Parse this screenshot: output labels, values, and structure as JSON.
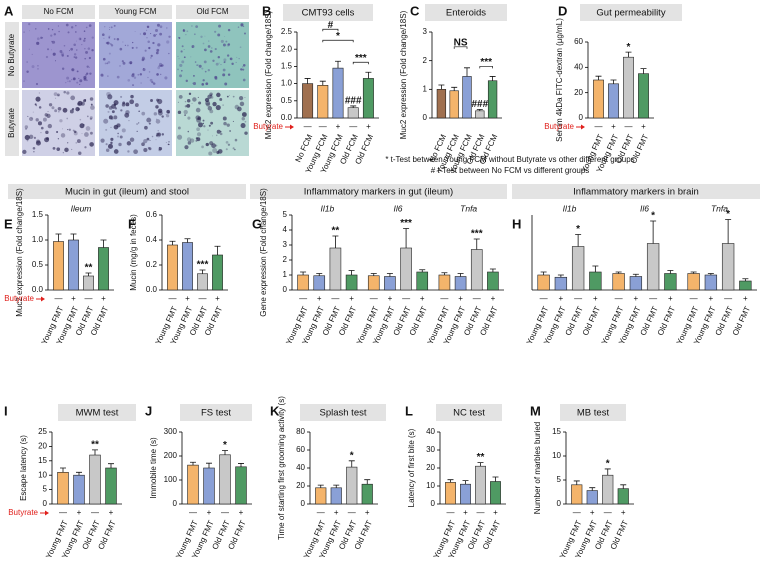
{
  "image_panel": {
    "letter": "A",
    "columns": [
      "No FCM",
      "Young FCM",
      "Old FCM"
    ],
    "rows": [
      "No Butyrate",
      "Butyrate"
    ]
  },
  "notes": [
    "* t-Test between Young FCM without Butyrate vs other different groups",
    "# t-Test between No FCM vs different groups"
  ],
  "chart_data": [
    {
      "type": "bar",
      "panel": "B",
      "title": "CMT93 cells",
      "ylabel": "Muc2 expression (Fold change/18S)",
      "ylim": [
        0,
        2.5
      ],
      "yticks": [
        {
          "value": 0,
          "label": "0.0"
        },
        0.5,
        {
          "value": 1,
          "label": "1.0"
        },
        1.5,
        {
          "value": 2,
          "label": "2.0"
        },
        2.5
      ],
      "categories": [
        "No FCM",
        "Young FCM",
        "Young FCM",
        "Old FCM",
        "Old FCM"
      ],
      "colors": [
        "#a0704f",
        "#f4b46b",
        "#8aa0d6",
        "#c8c8c8",
        "#4f9a63"
      ],
      "treatment_label": "Butyrate",
      "signs": [
        "—",
        "—",
        "+",
        "—",
        "+"
      ],
      "groups": [
        {
          "values": [
            1.0,
            0.95,
            1.45,
            0.3,
            1.15
          ],
          "errors": [
            0.15,
            0.12,
            0.2,
            0.05,
            0.18
          ],
          "annotations": [
            {
              "index": 3,
              "text": "###"
            }
          ],
          "brackets": [
            {
              "from": 3,
              "to": 4,
              "text": "***"
            },
            {
              "from": 1,
              "to": 3,
              "text": "*"
            },
            {
              "from": 1,
              "to": 2,
              "text": "#"
            }
          ]
        }
      ]
    },
    {
      "type": "bar",
      "panel": "C",
      "title": "Enteroids",
      "ylabel": "Muc2 expression (Fold change/18S)",
      "ylim": [
        0,
        3
      ],
      "yticks": [
        0,
        1,
        2,
        3
      ],
      "categories": [
        "No FCM",
        "Young FCM",
        "Young FCM",
        "Old FCM",
        "Old FCM"
      ],
      "colors": [
        "#a0704f",
        "#f4b46b",
        "#8aa0d6",
        "#c8c8c8",
        "#4f9a63"
      ],
      "groups": [
        {
          "values": [
            1.0,
            0.95,
            1.45,
            0.25,
            1.3
          ],
          "errors": [
            0.15,
            0.12,
            0.3,
            0.05,
            0.15
          ],
          "annotations": [
            {
              "index": 3,
              "text": "###"
            }
          ],
          "brackets": [
            {
              "from": 3,
              "to": 4,
              "text": "***"
            },
            {
              "from": 1,
              "to": 2,
              "text": "NS"
            }
          ]
        }
      ]
    },
    {
      "type": "bar",
      "panel": "D",
      "title": "Gut permeability",
      "ylabel": "Serum 4kDa FITC-dextran (µg/mL)",
      "ylim": [
        0,
        60
      ],
      "yticks": [
        0,
        20,
        40,
        60
      ],
      "categories": [
        "Young FMT",
        "Young FMT",
        "Old FMT",
        "Old FMT"
      ],
      "colors": [
        "#f4b46b",
        "#8aa0d6",
        "#c8c8c8",
        "#4f9a63"
      ],
      "treatment_label": "Butyrate",
      "signs": [
        "—",
        "+",
        "—",
        "+"
      ],
      "groups": [
        {
          "values": [
            30,
            27,
            48,
            35
          ],
          "errors": [
            3,
            3,
            4,
            4
          ],
          "annotations": [
            {
              "index": 2,
              "text": "*"
            }
          ]
        }
      ]
    },
    {
      "type": "bar",
      "panel": "E",
      "title": "Mucin in gut (ileum) and stool",
      "ylabel": "Muc2 expression (Fold change/18S)",
      "ylim": [
        0,
        1.5
      ],
      "yticks": [
        {
          "value": 0,
          "label": "0.0"
        },
        0.5,
        {
          "value": 1,
          "label": "1.0"
        },
        1.5
      ],
      "categories": [
        "Young FMT",
        "Young FMT",
        "Old FMT",
        "Old FMT"
      ],
      "colors": [
        "#f4b46b",
        "#8aa0d6",
        "#c8c8c8",
        "#4f9a63"
      ],
      "treatment_label": "Butyrate",
      "signs": [
        "—",
        "+",
        "—",
        "+"
      ],
      "groups": [
        {
          "name": "Ileum",
          "values": [
            0.97,
            1.0,
            0.28,
            0.85
          ],
          "errors": [
            0.15,
            0.12,
            0.06,
            0.15
          ],
          "annotations": [
            {
              "index": 2,
              "text": "**"
            }
          ]
        }
      ]
    },
    {
      "type": "bar",
      "panel": "F",
      "ylabel": "Mucin (mg/g in feces)",
      "ylim": [
        0,
        0.6
      ],
      "yticks": [
        {
          "value": 0,
          "label": "0.0"
        },
        0.2,
        0.4,
        0.6
      ],
      "categories": [
        "Young FMT",
        "Young FMT",
        "Old FMT",
        "Old FMT"
      ],
      "colors": [
        "#f4b46b",
        "#8aa0d6",
        "#c8c8c8",
        "#4f9a63"
      ],
      "signs": [
        "—",
        "+",
        "—",
        "+"
      ],
      "groups": [
        {
          "values": [
            0.36,
            0.38,
            0.13,
            0.28
          ],
          "errors": [
            0.03,
            0.03,
            0.03,
            0.07
          ],
          "annotations": [
            {
              "index": 2,
              "text": "***"
            }
          ]
        }
      ]
    },
    {
      "type": "bar",
      "panel": "G",
      "title": "Inflammatory markers in gut (ileum)",
      "ylabel": "Gene expression (Fold change/18S)",
      "ylim": [
        0,
        5
      ],
      "yticks": [
        0,
        1,
        2,
        3,
        4,
        5
      ],
      "categories": [
        "Young FMT",
        "Young FMT",
        "Old FMT",
        "Old FMT"
      ],
      "colors": [
        "#f4b46b",
        "#8aa0d6",
        "#c8c8c8",
        "#4f9a63"
      ],
      "signs": [
        "—",
        "+",
        "—",
        "+"
      ],
      "groups": [
        {
          "name": "Il1b",
          "values": [
            1.0,
            0.95,
            2.8,
            1.0
          ],
          "errors": [
            0.2,
            0.15,
            0.8,
            0.3
          ],
          "annotations": [
            {
              "index": 2,
              "text": "**"
            }
          ]
        },
        {
          "name": "Il6",
          "values": [
            0.95,
            0.9,
            2.8,
            1.2
          ],
          "errors": [
            0.15,
            0.2,
            1.3,
            0.15
          ],
          "annotations": [
            {
              "index": 2,
              "text": "***"
            }
          ]
        },
        {
          "name": "Tnfa",
          "values": [
            1.0,
            0.9,
            2.7,
            1.2
          ],
          "errors": [
            0.15,
            0.2,
            0.7,
            0.2
          ],
          "annotations": [
            {
              "index": 2,
              "text": "***"
            }
          ]
        }
      ]
    },
    {
      "type": "bar",
      "panel": "H",
      "title": "Inflammatory markers in brain",
      "ylim": [
        0,
        5
      ],
      "categories": [
        "Young FMT",
        "Young FMT",
        "Old FMT",
        "Old FMT"
      ],
      "colors": [
        "#f4b46b",
        "#8aa0d6",
        "#c8c8c8",
        "#4f9a63"
      ],
      "signs": [
        "—",
        "+",
        "—",
        "+"
      ],
      "groups": [
        {
          "name": "Il1b",
          "values": [
            1.0,
            0.85,
            2.9,
            1.2
          ],
          "errors": [
            0.2,
            0.15,
            0.8,
            0.4
          ],
          "annotations": [
            {
              "index": 2,
              "text": "*"
            }
          ]
        },
        {
          "name": "Il6",
          "values": [
            1.1,
            0.9,
            3.1,
            1.1
          ],
          "errors": [
            0.1,
            0.15,
            1.5,
            0.2
          ],
          "annotations": [
            {
              "index": 2,
              "text": "*"
            }
          ]
        },
        {
          "name": "Tnfa",
          "values": [
            1.1,
            1.0,
            3.1,
            0.6
          ],
          "errors": [
            0.1,
            0.1,
            1.6,
            0.15
          ],
          "annotations": [
            {
              "index": 2,
              "text": "*"
            }
          ]
        }
      ]
    },
    {
      "type": "bar",
      "panel": "I",
      "title": "MWM test",
      "ylabel": "Escape latency (s)",
      "ylim": [
        0,
        25
      ],
      "yticks": [
        0,
        5,
        10,
        15,
        20,
        25
      ],
      "categories": [
        "Young FMT",
        "Young FMT",
        "Old FMT",
        "Old FMT"
      ],
      "colors": [
        "#f4b46b",
        "#8aa0d6",
        "#c8c8c8",
        "#4f9a63"
      ],
      "treatment_label": "Butyrate",
      "signs": [
        "—",
        "+",
        "—",
        "+"
      ],
      "groups": [
        {
          "values": [
            11,
            10,
            17,
            12.5
          ],
          "errors": [
            1.5,
            1,
            1.8,
            1.5
          ],
          "annotations": [
            {
              "index": 2,
              "text": "**"
            }
          ]
        }
      ]
    },
    {
      "type": "bar",
      "panel": "J",
      "title": "FS test",
      "ylabel": "Immobile time (s)",
      "ylim": [
        0,
        300
      ],
      "yticks": [
        0,
        100,
        200,
        300
      ],
      "categories": [
        "Young FMT",
        "Young FMT",
        "Old FMT",
        "Old FMT"
      ],
      "colors": [
        "#f4b46b",
        "#8aa0d6",
        "#c8c8c8",
        "#4f9a63"
      ],
      "signs": [
        "—",
        "+",
        "—",
        "+"
      ],
      "groups": [
        {
          "values": [
            162,
            150,
            205,
            155
          ],
          "errors": [
            12,
            20,
            18,
            14
          ],
          "annotations": [
            {
              "index": 2,
              "text": "*"
            }
          ]
        }
      ]
    },
    {
      "type": "bar",
      "panel": "K",
      "title": "Splash test",
      "ylabel": "Time of starting first grooming activity (s)",
      "ylim": [
        0,
        80
      ],
      "yticks": [
        0,
        20,
        40,
        60,
        80
      ],
      "categories": [
        "Young FMT",
        "Young FMT",
        "Old FMT",
        "Old FMT"
      ],
      "colors": [
        "#f4b46b",
        "#8aa0d6",
        "#c8c8c8",
        "#4f9a63"
      ],
      "signs": [
        "—",
        "+",
        "—",
        "+"
      ],
      "groups": [
        {
          "values": [
            18,
            18,
            41,
            22
          ],
          "errors": [
            3,
            3,
            7,
            5
          ],
          "annotations": [
            {
              "index": 2,
              "text": "*"
            }
          ]
        }
      ]
    },
    {
      "type": "bar",
      "panel": "L",
      "title": "NC test",
      "ylabel": "Latency of first bite (s)",
      "ylim": [
        0,
        40
      ],
      "yticks": [
        0,
        10,
        20,
        30,
        40
      ],
      "categories": [
        "Young FMT",
        "Young FMT",
        "Old FMT",
        "Old FMT"
      ],
      "colors": [
        "#f4b46b",
        "#8aa0d6",
        "#c8c8c8",
        "#4f9a63"
      ],
      "signs": [
        "—",
        "+",
        "—",
        "+"
      ],
      "groups": [
        {
          "values": [
            12,
            11,
            21,
            12.5
          ],
          "errors": [
            1.5,
            2,
            2,
            2.5
          ],
          "annotations": [
            {
              "index": 2,
              "text": "**"
            }
          ]
        }
      ]
    },
    {
      "type": "bar",
      "panel": "M",
      "title": "MB test",
      "ylabel": "Number of marbles buried",
      "ylim": [
        0,
        15
      ],
      "yticks": [
        0,
        5,
        10,
        15
      ],
      "categories": [
        "Young FMT",
        "Young FMT",
        "Old FMT",
        "Old FMT"
      ],
      "colors": [
        "#f4b46b",
        "#8aa0d6",
        "#c8c8c8",
        "#4f9a63"
      ],
      "signs": [
        "—",
        "+",
        "—",
        "+"
      ],
      "groups": [
        {
          "values": [
            4,
            2.8,
            6,
            3.2
          ],
          "errors": [
            0.8,
            0.6,
            1.3,
            0.8
          ],
          "annotations": [
            {
              "index": 2,
              "text": "*"
            }
          ]
        }
      ]
    }
  ]
}
